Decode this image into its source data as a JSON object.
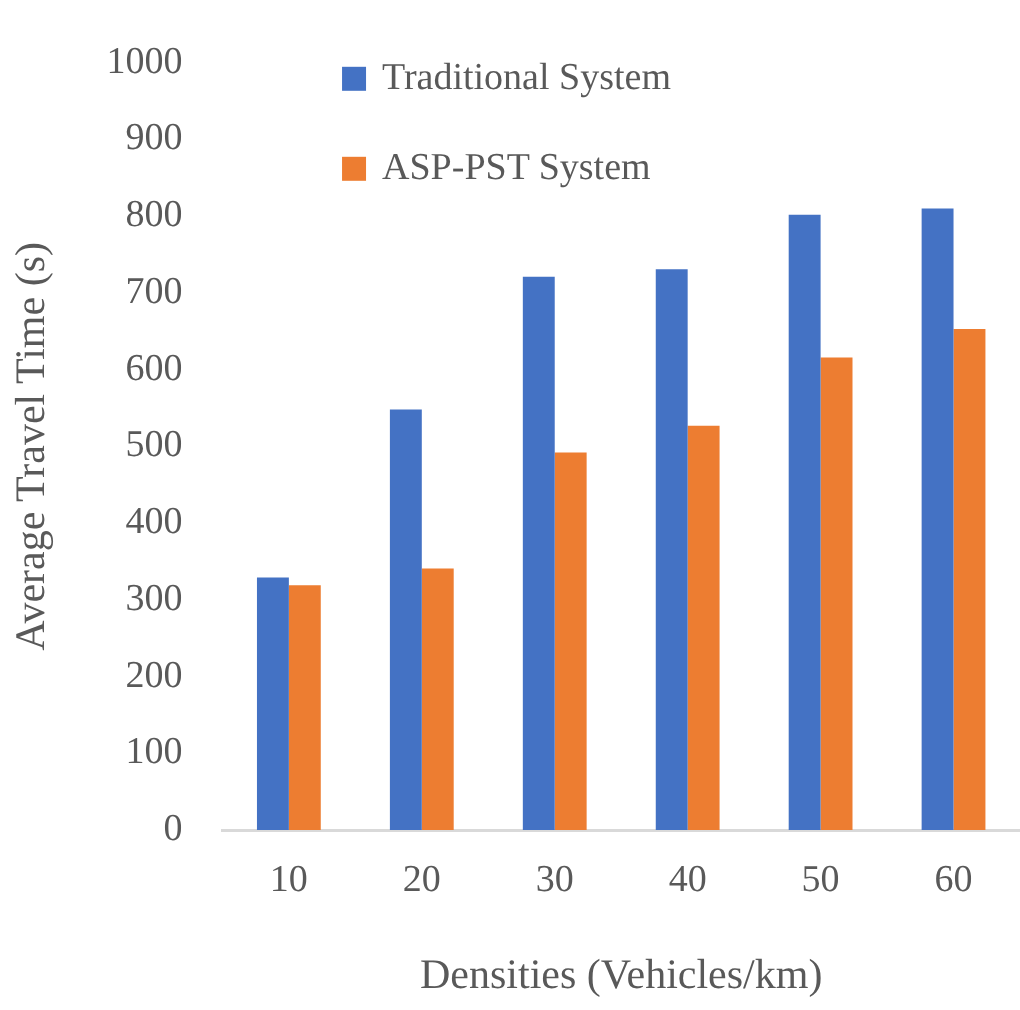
{
  "chart_data": {
    "type": "bar",
    "xlabel": "Densities (Vehicles/km)",
    "ylabel": "Average Travel Time (s)",
    "categories": [
      "10",
      "20",
      "30",
      "40",
      "50",
      "60"
    ],
    "series": [
      {
        "name": "Traditional System",
        "color": "#4472c4",
        "values": [
          329,
          548,
          721,
          731,
          802,
          810
        ]
      },
      {
        "name": "ASP-PST System",
        "color": "#ed7d31",
        "values": [
          319,
          341,
          492,
          527,
          616,
          653
        ]
      }
    ],
    "ylim": [
      0,
      1000
    ],
    "yticks": [
      0,
      100,
      200,
      300,
      400,
      500,
      600,
      700,
      800,
      900,
      1000
    ],
    "grid": false,
    "legend": "top"
  }
}
